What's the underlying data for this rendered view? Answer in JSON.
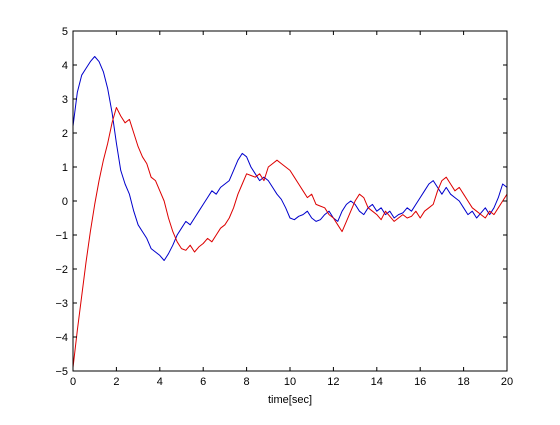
{
  "chart_data": {
    "type": "line",
    "xlabel": "time[sec]",
    "ylabel": "",
    "xlim": [
      0,
      20
    ],
    "ylim": [
      -5,
      5
    ],
    "xticks": [
      "0",
      "2",
      "4",
      "6",
      "8",
      "10",
      "12",
      "14",
      "16",
      "18",
      "20"
    ],
    "yticks": [
      "-5",
      "-4",
      "-3",
      "-2",
      "-1",
      "0",
      "1",
      "2",
      "3",
      "4",
      "5"
    ],
    "grid": false,
    "series": [
      {
        "color": "#0000cc",
        "x": [
          0,
          0.2,
          0.4,
          0.6,
          0.8,
          1.0,
          1.2,
          1.4,
          1.6,
          1.8,
          2.0,
          2.2,
          2.4,
          2.6,
          2.8,
          3.0,
          3.2,
          3.4,
          3.6,
          3.8,
          4.0,
          4.2,
          4.4,
          4.6,
          4.8,
          5.0,
          5.2,
          5.4,
          5.6,
          5.8,
          6.0,
          6.2,
          6.4,
          6.6,
          6.8,
          7.0,
          7.2,
          7.4,
          7.6,
          7.8,
          8.0,
          8.2,
          8.4,
          8.6,
          8.8,
          9.0,
          9.2,
          9.4,
          9.6,
          9.8,
          10.0,
          10.2,
          10.4,
          10.6,
          10.8,
          11.0,
          11.2,
          11.4,
          11.6,
          11.8,
          12.0,
          12.2,
          12.4,
          12.6,
          12.8,
          13.0,
          13.2,
          13.4,
          13.6,
          13.8,
          14.0,
          14.2,
          14.4,
          14.6,
          14.8,
          15.0,
          15.2,
          15.4,
          15.6,
          15.8,
          16.0,
          16.2,
          16.4,
          16.6,
          16.8,
          17.0,
          17.2,
          17.4,
          17.6,
          17.8,
          18.0,
          18.2,
          18.4,
          18.6,
          18.8,
          19.0,
          19.2,
          19.4,
          19.6,
          19.8,
          20.0
        ],
        "y": [
          2.2,
          3.2,
          3.7,
          3.9,
          4.1,
          4.25,
          4.1,
          3.8,
          3.3,
          2.6,
          1.7,
          0.9,
          0.5,
          0.2,
          -0.3,
          -0.7,
          -0.9,
          -1.1,
          -1.4,
          -1.5,
          -1.6,
          -1.75,
          -1.55,
          -1.3,
          -1.0,
          -0.8,
          -0.6,
          -0.7,
          -0.5,
          -0.3,
          -0.1,
          0.1,
          0.3,
          0.2,
          0.4,
          0.5,
          0.6,
          0.9,
          1.2,
          1.4,
          1.3,
          1.0,
          0.8,
          0.6,
          0.7,
          0.6,
          0.4,
          0.2,
          0.05,
          -0.2,
          -0.5,
          -0.55,
          -0.45,
          -0.4,
          -0.3,
          -0.5,
          -0.6,
          -0.55,
          -0.4,
          -0.3,
          -0.5,
          -0.6,
          -0.3,
          -0.1,
          0.0,
          -0.1,
          -0.3,
          -0.4,
          -0.2,
          -0.1,
          -0.3,
          -0.2,
          -0.4,
          -0.3,
          -0.5,
          -0.4,
          -0.35,
          -0.2,
          -0.3,
          -0.1,
          0.1,
          0.3,
          0.5,
          0.6,
          0.4,
          0.2,
          0.4,
          0.2,
          0.1,
          0.0,
          -0.2,
          -0.4,
          -0.3,
          -0.5,
          -0.35,
          -0.2,
          -0.4,
          -0.2,
          0.1,
          0.5,
          0.4
        ]
      },
      {
        "color": "#dd0000",
        "x": [
          0,
          0.2,
          0.4,
          0.6,
          0.8,
          1.0,
          1.2,
          1.4,
          1.6,
          1.8,
          2.0,
          2.2,
          2.4,
          2.6,
          2.8,
          3.0,
          3.2,
          3.4,
          3.6,
          3.8,
          4.0,
          4.2,
          4.4,
          4.6,
          4.8,
          5.0,
          5.2,
          5.4,
          5.6,
          5.8,
          6.0,
          6.2,
          6.4,
          6.6,
          6.8,
          7.0,
          7.2,
          7.4,
          7.6,
          7.8,
          8.0,
          8.2,
          8.4,
          8.6,
          8.8,
          9.0,
          9.2,
          9.4,
          9.6,
          9.8,
          10.0,
          10.2,
          10.4,
          10.6,
          10.8,
          11.0,
          11.2,
          11.4,
          11.6,
          11.8,
          12.0,
          12.2,
          12.4,
          12.6,
          12.8,
          13.0,
          13.2,
          13.4,
          13.6,
          13.8,
          14.0,
          14.2,
          14.4,
          14.6,
          14.8,
          15.0,
          15.2,
          15.4,
          15.6,
          15.8,
          16.0,
          16.2,
          16.4,
          16.6,
          16.8,
          17.0,
          17.2,
          17.4,
          17.6,
          17.8,
          18.0,
          18.2,
          18.4,
          18.6,
          18.8,
          19.0,
          19.2,
          19.4,
          19.6,
          19.8,
          20.0
        ],
        "y": [
          -4.9,
          -3.8,
          -2.8,
          -1.8,
          -0.9,
          -0.1,
          0.6,
          1.2,
          1.7,
          2.3,
          2.75,
          2.5,
          2.3,
          2.4,
          2.0,
          1.6,
          1.3,
          1.1,
          0.7,
          0.6,
          0.3,
          0.0,
          -0.5,
          -0.9,
          -1.2,
          -1.4,
          -1.45,
          -1.3,
          -1.5,
          -1.35,
          -1.25,
          -1.1,
          -1.2,
          -1.0,
          -0.8,
          -0.7,
          -0.5,
          -0.2,
          0.2,
          0.5,
          0.8,
          0.75,
          0.7,
          0.8,
          0.6,
          1.0,
          1.1,
          1.2,
          1.1,
          1.0,
          0.9,
          0.7,
          0.5,
          0.3,
          0.1,
          0.2,
          -0.1,
          -0.15,
          -0.2,
          -0.4,
          -0.5,
          -0.7,
          -0.9,
          -0.6,
          -0.3,
          0.0,
          0.2,
          0.1,
          -0.2,
          -0.3,
          -0.4,
          -0.55,
          -0.3,
          -0.45,
          -0.6,
          -0.5,
          -0.4,
          -0.5,
          -0.45,
          -0.3,
          -0.5,
          -0.3,
          -0.2,
          -0.1,
          0.3,
          0.6,
          0.7,
          0.5,
          0.3,
          0.4,
          0.2,
          0.0,
          -0.2,
          -0.3,
          -0.4,
          -0.5,
          -0.3,
          -0.4,
          -0.2,
          0.0,
          0.2
        ]
      }
    ]
  }
}
